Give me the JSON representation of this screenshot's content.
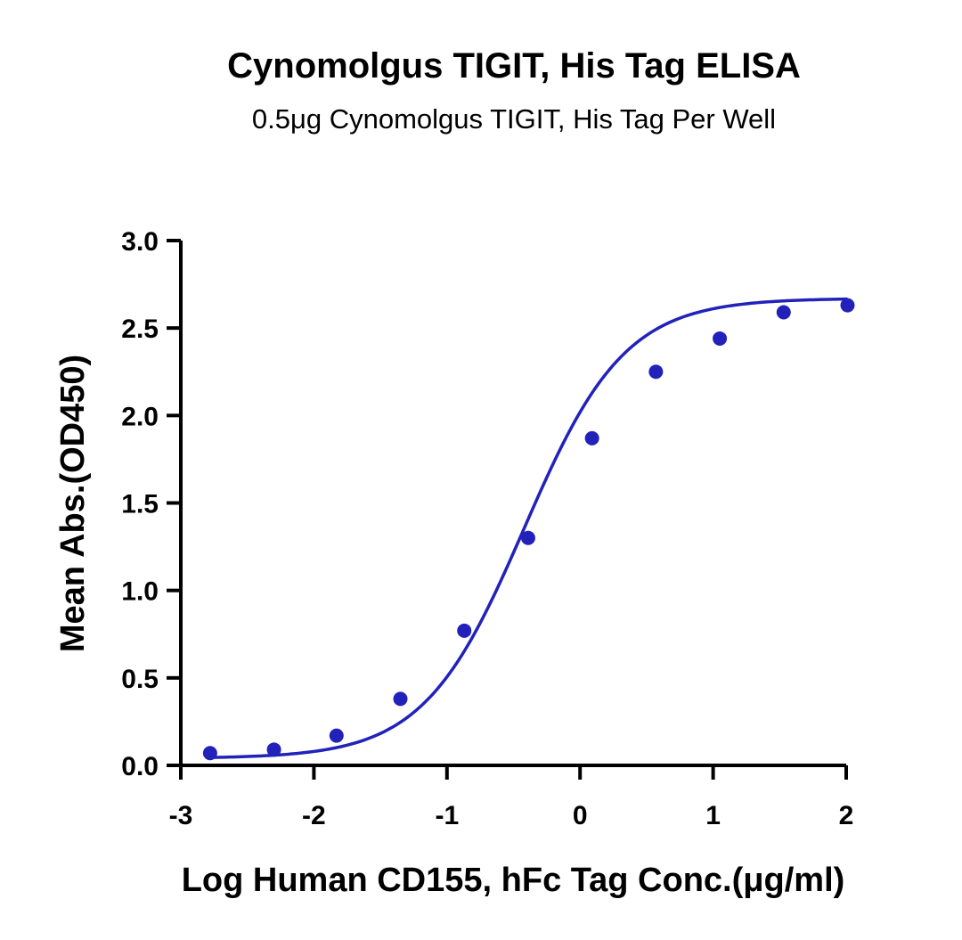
{
  "chart_data": {
    "type": "scatter",
    "title": "Cynomolgus TIGIT, His Tag ELISA",
    "subtitle": "0.5μg Cynomolgus TIGIT, His Tag Per Well",
    "xlabel": "Log Human CD155, hFc Tag Conc.(μg/ml)",
    "ylabel": "Mean Abs.(OD450)",
    "xlim": [
      -3,
      2
    ],
    "ylim": [
      0,
      3.0
    ],
    "xticks": [
      "-3",
      "-2",
      "-1",
      "0",
      "1",
      "2"
    ],
    "yticks": [
      "0.0",
      "0.5",
      "1.0",
      "1.5",
      "2.0",
      "2.5",
      "3.0"
    ],
    "grid": false,
    "series": [
      {
        "color": "#2222bb",
        "x": [
          -2.78,
          -2.3,
          -1.83,
          -1.35,
          -0.87,
          -0.39,
          0.09,
          0.57,
          1.05,
          1.53,
          2.01
        ],
        "y": [
          0.07,
          0.09,
          0.17,
          0.38,
          0.77,
          1.3,
          1.87,
          2.25,
          2.44,
          2.59,
          2.63
        ]
      }
    ],
    "fit": {
      "model": "4PL",
      "bottom": 0.04,
      "top": 2.67,
      "logEC50": -0.42,
      "hill": 1.15,
      "color": "#2222bb"
    }
  }
}
